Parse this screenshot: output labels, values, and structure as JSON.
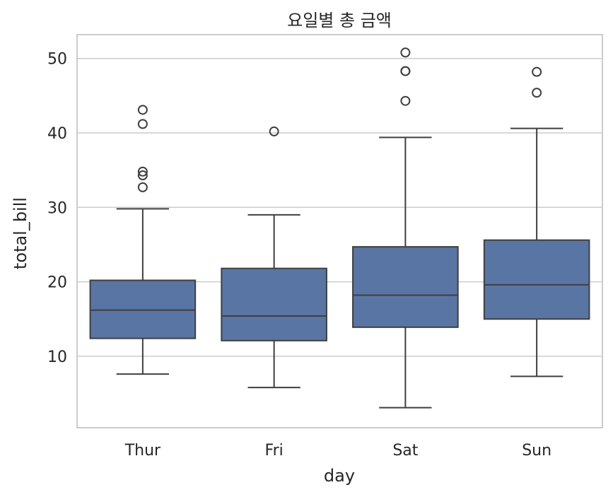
{
  "chart_data": {
    "type": "box",
    "title": "요일별 총 금액",
    "xlabel": "day",
    "ylabel": "total_bill",
    "ylim": [
      0.4,
      53.2
    ],
    "yticks": [
      10,
      20,
      30,
      40,
      50
    ],
    "grid": "horizontal",
    "box_color": "#5975a4",
    "categories": [
      "Thur",
      "Fri",
      "Sat",
      "Sun"
    ],
    "boxes": [
      {
        "category": "Thur",
        "whisker_low": 7.6,
        "q1": 12.4,
        "median": 16.2,
        "q3": 20.2,
        "whisker_high": 29.8,
        "fliers": [
          32.7,
          34.3,
          34.8,
          41.2,
          43.1
        ]
      },
      {
        "category": "Fri",
        "whisker_low": 5.8,
        "q1": 12.1,
        "median": 15.4,
        "q3": 21.8,
        "whisker_high": 29.0,
        "fliers": [
          40.2
        ]
      },
      {
        "category": "Sat",
        "whisker_low": 3.1,
        "q1": 13.9,
        "median": 18.2,
        "q3": 24.7,
        "whisker_high": 39.4,
        "fliers": [
          44.3,
          48.3,
          48.3,
          50.8
        ]
      },
      {
        "category": "Sun",
        "whisker_low": 7.3,
        "q1": 15.0,
        "median": 19.6,
        "q3": 25.6,
        "whisker_high": 40.6,
        "fliers": [
          45.4,
          48.2
        ]
      }
    ]
  }
}
